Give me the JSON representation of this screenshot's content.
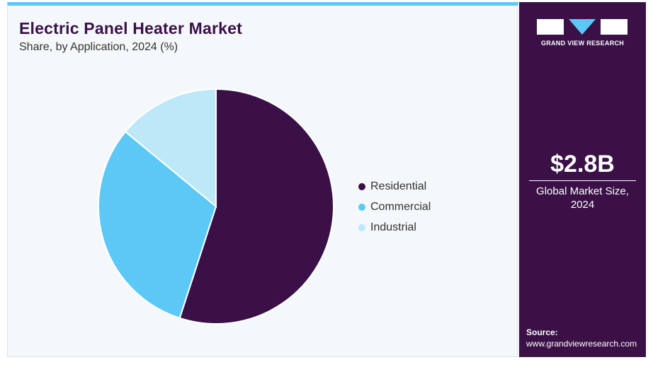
{
  "chart_data": {
    "type": "pie",
    "title": "Electric Panel Heater Market",
    "subtitle": "Share, by Application, 2024 (%)",
    "categories": [
      "Residential",
      "Commercial",
      "Industrial"
    ],
    "values": [
      55,
      31,
      14
    ],
    "colors": [
      "#3a1047",
      "#5bc8f5",
      "#bde8f8"
    ]
  },
  "sidebar": {
    "brand": "GRAND VIEW RESEARCH",
    "market_size": "$2.8B",
    "market_size_label": "Global Market Size, 2024",
    "source_label": "Source:",
    "source_url": "www.grandviewresearch.com"
  }
}
